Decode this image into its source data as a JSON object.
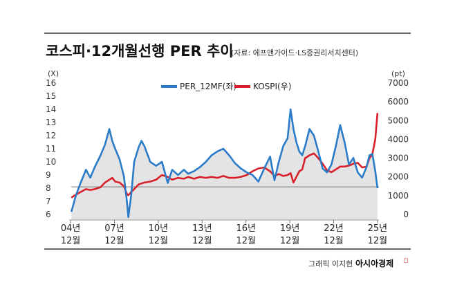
{
  "header": {
    "title": "코스피·12개월선행 PER 추이",
    "source": "(자료: 에프앤가이드·LS증권리서치센터)"
  },
  "footer": {
    "credit": "그래픽 이지현",
    "brand": "아시아경제"
  },
  "colors": {
    "per": "#2a7bc8",
    "kospi": "#d8202a",
    "area": "#e4e4e4",
    "axis": "#555555"
  },
  "chart_data": {
    "type": "line",
    "left_axis": {
      "unit": "(X)",
      "ticks": [
        "6",
        "7",
        "8",
        "9",
        "10",
        "11",
        "12",
        "13",
        "14",
        "15",
        "16"
      ],
      "ylim": [
        6,
        16
      ]
    },
    "right_axis": {
      "unit": "(pt)",
      "ticks": [
        "0",
        "1000",
        "2000",
        "3000",
        "4000",
        "5000",
        "6000",
        "7000"
      ],
      "ylim": [
        0,
        7000
      ]
    },
    "x_ticks": [
      {
        "year": "04년",
        "month": "12월",
        "x": 2004.95
      },
      {
        "year": "07년",
        "month": "12월",
        "x": 2007.95
      },
      {
        "year": "10년",
        "month": "12월",
        "x": 2010.95
      },
      {
        "year": "13년",
        "month": "12월",
        "x": 2013.95
      },
      {
        "year": "16년",
        "month": "12월",
        "x": 2016.95
      },
      {
        "year": "19년",
        "month": "12월",
        "x": 2019.95
      },
      {
        "year": "22년",
        "month": "12월",
        "x": 2022.95
      },
      {
        "year": "25년",
        "month": "12월",
        "x": 2025.95
      }
    ],
    "xlim": [
      2004.85,
      2026.05
    ],
    "reference_line": {
      "axis": "left",
      "value": 8.1
    },
    "series": [
      {
        "name": "PER_12MF(좌)",
        "axis": "left",
        "color": "#2a7bc8",
        "x": [
          2005.0,
          2005.3,
          2005.6,
          2006.0,
          2006.3,
          2006.6,
          2007.0,
          2007.3,
          2007.6,
          2007.8,
          2008.0,
          2008.3,
          2008.6,
          2008.8,
          2008.9,
          2009.1,
          2009.3,
          2009.6,
          2009.8,
          2010.0,
          2010.4,
          2010.8,
          2011.2,
          2011.6,
          2011.9,
          2012.3,
          2012.7,
          2013.0,
          2013.4,
          2013.8,
          2014.2,
          2014.6,
          2015.0,
          2015.4,
          2015.8,
          2016.2,
          2016.6,
          2017.0,
          2017.4,
          2017.8,
          2018.2,
          2018.6,
          2018.9,
          2019.2,
          2019.5,
          2019.8,
          2020.0,
          2020.2,
          2020.4,
          2020.6,
          2020.8,
          2021.0,
          2021.3,
          2021.6,
          2021.9,
          2022.2,
          2022.5,
          2022.8,
          2023.1,
          2023.4,
          2023.7,
          2024.0,
          2024.3,
          2024.6,
          2024.9,
          2025.2,
          2025.4,
          2025.6,
          2025.8,
          2025.95
        ],
        "values": [
          6.2,
          7.4,
          8.3,
          9.4,
          8.8,
          9.6,
          10.5,
          11.3,
          12.5,
          11.6,
          11.0,
          10.2,
          8.9,
          7.0,
          5.8,
          7.5,
          10.0,
          11.1,
          11.6,
          11.2,
          10.0,
          9.7,
          10.0,
          8.4,
          9.4,
          9.0,
          9.4,
          9.1,
          9.3,
          9.6,
          10.0,
          10.5,
          10.8,
          11.0,
          10.5,
          9.9,
          9.5,
          9.2,
          9.0,
          8.5,
          9.5,
          10.4,
          8.6,
          10.0,
          11.2,
          11.8,
          14.0,
          12.5,
          11.5,
          10.8,
          10.5,
          11.2,
          12.5,
          12.0,
          10.8,
          9.5,
          9.2,
          9.8,
          11.2,
          12.8,
          11.5,
          9.8,
          10.3,
          9.2,
          8.8,
          9.6,
          10.5,
          10.6,
          9.3,
          8.0
        ]
      },
      {
        "name": "KOSPI(우)",
        "axis": "right",
        "color": "#d8202a",
        "x": [
          2005.0,
          2005.3,
          2005.6,
          2006.0,
          2006.3,
          2006.6,
          2007.0,
          2007.3,
          2007.6,
          2007.8,
          2008.0,
          2008.3,
          2008.6,
          2008.8,
          2008.9,
          2009.1,
          2009.3,
          2009.6,
          2009.8,
          2010.0,
          2010.4,
          2010.8,
          2011.2,
          2011.6,
          2011.9,
          2012.3,
          2012.7,
          2013.0,
          2013.4,
          2013.8,
          2014.2,
          2014.6,
          2015.0,
          2015.4,
          2015.8,
          2016.2,
          2016.6,
          2017.0,
          2017.4,
          2017.8,
          2018.2,
          2018.6,
          2018.9,
          2019.2,
          2019.5,
          2019.8,
          2020.0,
          2020.2,
          2020.4,
          2020.6,
          2020.8,
          2021.0,
          2021.3,
          2021.6,
          2021.9,
          2022.2,
          2022.5,
          2022.8,
          2023.1,
          2023.4,
          2023.7,
          2024.0,
          2024.3,
          2024.6,
          2024.9,
          2025.2,
          2025.4,
          2025.6,
          2025.8,
          2025.95
        ],
        "values": [
          900,
          1050,
          1180,
          1350,
          1300,
          1350,
          1450,
          1700,
          1850,
          1950,
          1750,
          1700,
          1500,
          1100,
          1020,
          1200,
          1350,
          1600,
          1650,
          1700,
          1750,
          1850,
          2100,
          2000,
          1850,
          1950,
          1900,
          2000,
          1900,
          2000,
          1950,
          2000,
          1950,
          2050,
          1950,
          1950,
          2000,
          2100,
          2300,
          2450,
          2500,
          2300,
          2050,
          2150,
          2050,
          2100,
          2200,
          1700,
          2000,
          2300,
          2400,
          3000,
          3150,
          3250,
          3000,
          2700,
          2350,
          2250,
          2400,
          2550,
          2550,
          2600,
          2700,
          2750,
          2500,
          2550,
          3000,
          3200,
          4000,
          5400
        ]
      }
    ]
  }
}
